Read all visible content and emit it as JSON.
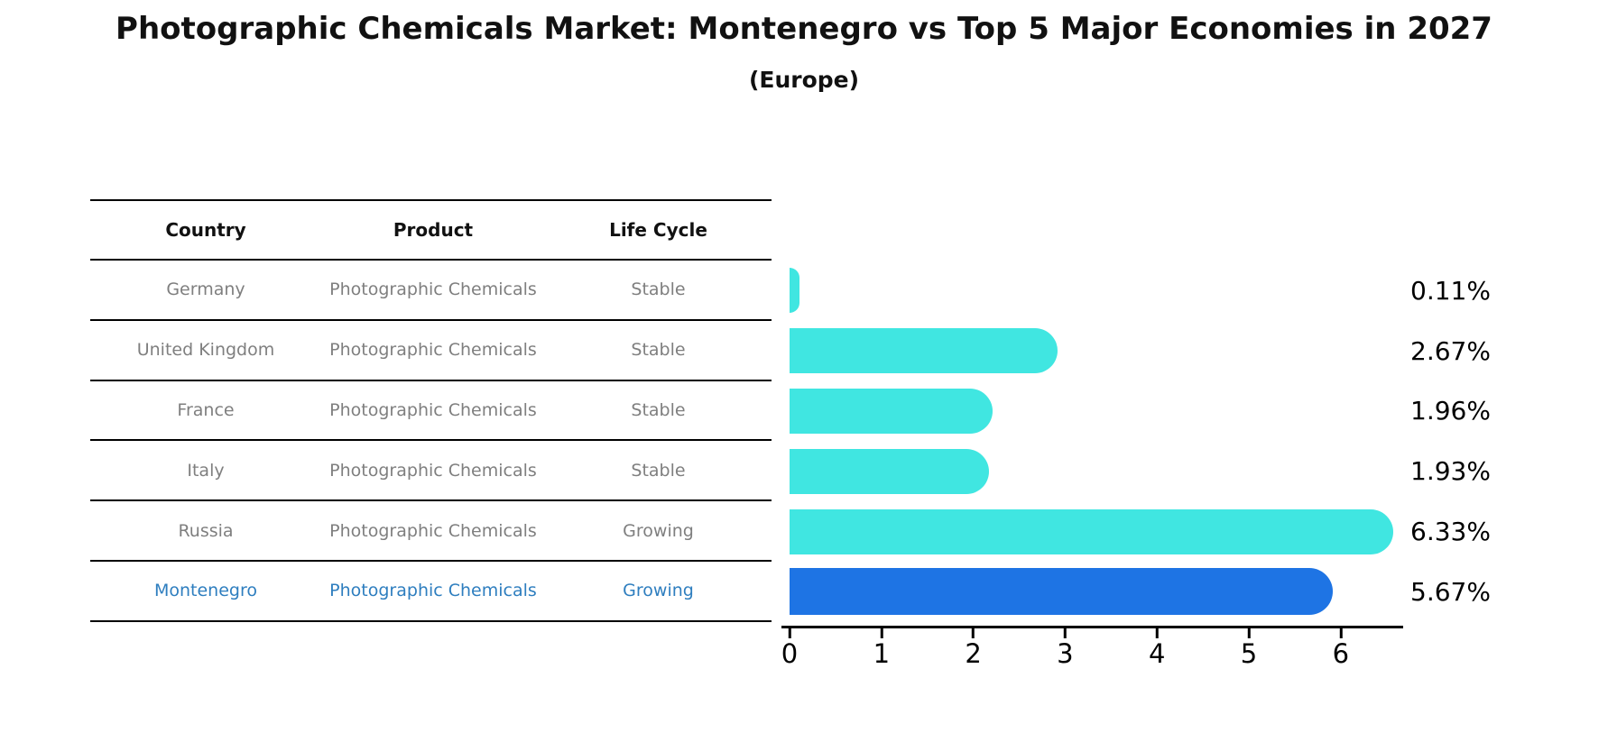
{
  "title": "Photographic Chemicals Market: Montenegro vs Top 5 Major Economies in 2027",
  "subtitle": "(Europe)",
  "table": {
    "headers": [
      "Country",
      "Product",
      "Life Cycle"
    ],
    "rows": [
      {
        "country": "Germany",
        "product": "Photographic Chemicals",
        "life_cycle": "Stable"
      },
      {
        "country": "United Kingdom",
        "product": "Photographic Chemicals",
        "life_cycle": "Stable"
      },
      {
        "country": "France",
        "product": "Photographic Chemicals",
        "life_cycle": "Stable"
      },
      {
        "country": "Italy",
        "product": "Photographic Chemicals",
        "life_cycle": "Stable"
      },
      {
        "country": "Russia",
        "product": "Photographic Chemicals",
        "life_cycle": "Growing"
      },
      {
        "country": "Montenegro",
        "product": "Photographic Chemicals",
        "life_cycle": "Growing"
      }
    ],
    "highlight_row": 5
  },
  "chart_data": {
    "type": "bar",
    "orientation": "horizontal",
    "categories": [
      "Germany",
      "United Kingdom",
      "France",
      "Italy",
      "Russia",
      "Montenegro"
    ],
    "values": [
      0.11,
      2.67,
      1.96,
      1.93,
      6.33,
      5.67
    ],
    "value_labels": [
      "0.11%",
      "2.67%",
      "1.96%",
      "1.93%",
      "6.33%",
      "5.67%"
    ],
    "xticks": [
      0,
      1,
      2,
      3,
      4,
      5,
      6
    ],
    "xlim": [
      0,
      6.65
    ],
    "grid": false,
    "legend_position": "none",
    "highlight_index": 5,
    "bar_color": "#40e6e1",
    "highlight_color": "#1e74e4",
    "highlight_text_color": "#2e7ebf",
    "axis_color": "#000000"
  }
}
